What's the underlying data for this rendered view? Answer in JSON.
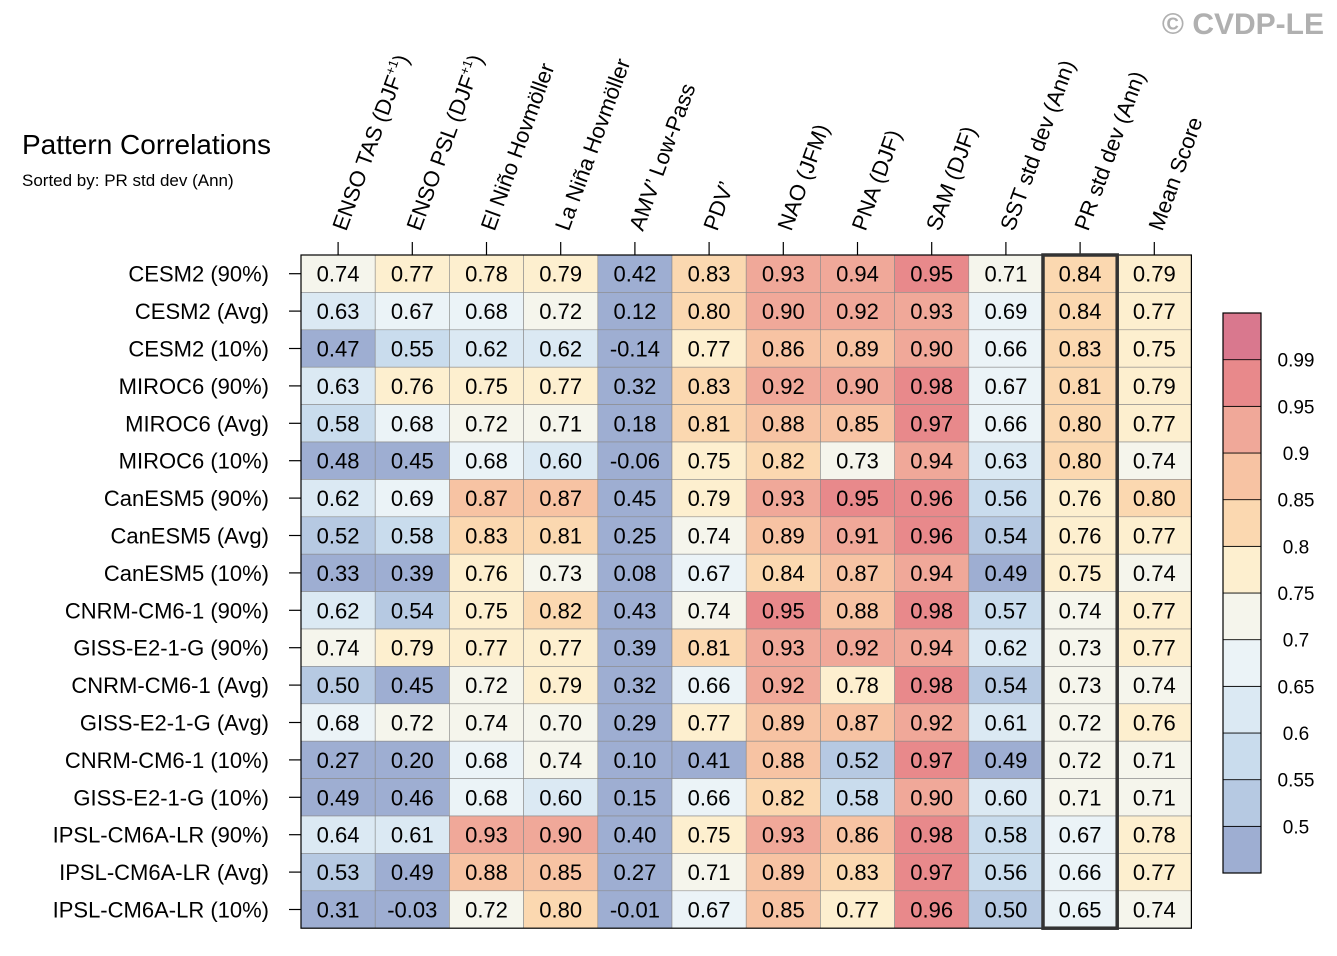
{
  "watermark": "© CVDP-LE",
  "chart_data": {
    "type": "heatmap",
    "title": "Pattern Correlations",
    "subtitle": "Sorted by: PR std dev (Ann)",
    "columns": [
      "ENSO TAS (DJF+1)",
      "ENSO PSL (DJF+1)",
      "El Niño Hovmöller",
      "La Niña Hovmöller",
      "AMV’ Low-Pass",
      "PDV’",
      "NAO (JFM)",
      "PNA (DJF)",
      "SAM (DJF)",
      "SST std dev (Ann)",
      "PR std dev (Ann)",
      "Mean Score"
    ],
    "column_labels": [
      {
        "main": "ENSO TAS (DJF",
        "sup": "+1",
        "end": ")"
      },
      {
        "main": "ENSO PSL (DJF",
        "sup": "+1",
        "end": ")"
      },
      {
        "main": "El Niño Hovmöller"
      },
      {
        "main": "La Niña Hovmöller"
      },
      {
        "main": "AMV’ Low-Pass"
      },
      {
        "main": "PDV’"
      },
      {
        "main": "NAO (JFM)"
      },
      {
        "main": "PNA (DJF)"
      },
      {
        "main": "SAM (DJF)"
      },
      {
        "main": "SST std dev (Ann)"
      },
      {
        "main": "PR std dev (Ann)"
      },
      {
        "main": "Mean Score"
      }
    ],
    "highlighted_column": "PR std dev (Ann)",
    "rows": [
      "CESM2 (90%)",
      "CESM2 (Avg)",
      "CESM2 (10%)",
      "MIROC6 (90%)",
      "MIROC6 (Avg)",
      "MIROC6 (10%)",
      "CanESM5 (90%)",
      "CanESM5 (Avg)",
      "CanESM5 (10%)",
      "CNRM-CM6-1 (90%)",
      "GISS-E2-1-G (90%)",
      "CNRM-CM6-1 (Avg)",
      "GISS-E2-1-G (Avg)",
      "CNRM-CM6-1 (10%)",
      "GISS-E2-1-G (10%)",
      "IPSL-CM6A-LR (90%)",
      "IPSL-CM6A-LR (Avg)",
      "IPSL-CM6A-LR (10%)"
    ],
    "values": [
      [
        0.74,
        0.77,
        0.78,
        0.79,
        0.42,
        0.83,
        0.93,
        0.94,
        0.95,
        0.71,
        0.84,
        0.79
      ],
      [
        0.63,
        0.67,
        0.68,
        0.72,
        0.12,
        0.8,
        0.9,
        0.92,
        0.93,
        0.69,
        0.84,
        0.77
      ],
      [
        0.47,
        0.55,
        0.62,
        0.62,
        -0.14,
        0.77,
        0.86,
        0.89,
        0.9,
        0.66,
        0.83,
        0.75
      ],
      [
        0.63,
        0.76,
        0.75,
        0.77,
        0.32,
        0.83,
        0.92,
        0.9,
        0.98,
        0.67,
        0.81,
        0.79
      ],
      [
        0.58,
        0.68,
        0.72,
        0.71,
        0.18,
        0.81,
        0.88,
        0.85,
        0.97,
        0.66,
        0.8,
        0.77
      ],
      [
        0.48,
        0.45,
        0.68,
        0.6,
        -0.06,
        0.75,
        0.82,
        0.73,
        0.94,
        0.63,
        0.8,
        0.74
      ],
      [
        0.62,
        0.69,
        0.87,
        0.87,
        0.45,
        0.79,
        0.93,
        0.95,
        0.96,
        0.56,
        0.76,
        0.8
      ],
      [
        0.52,
        0.58,
        0.83,
        0.81,
        0.25,
        0.74,
        0.89,
        0.91,
        0.96,
        0.54,
        0.76,
        0.77
      ],
      [
        0.33,
        0.39,
        0.76,
        0.73,
        0.08,
        0.67,
        0.84,
        0.87,
        0.94,
        0.49,
        0.75,
        0.74
      ],
      [
        0.62,
        0.54,
        0.75,
        0.82,
        0.43,
        0.74,
        0.95,
        0.88,
        0.98,
        0.57,
        0.74,
        0.77
      ],
      [
        0.74,
        0.79,
        0.77,
        0.77,
        0.39,
        0.81,
        0.93,
        0.92,
        0.94,
        0.62,
        0.73,
        0.77
      ],
      [
        0.5,
        0.45,
        0.72,
        0.79,
        0.32,
        0.66,
        0.92,
        0.78,
        0.98,
        0.54,
        0.73,
        0.74
      ],
      [
        0.68,
        0.72,
        0.74,
        0.7,
        0.29,
        0.77,
        0.89,
        0.87,
        0.92,
        0.61,
        0.72,
        0.76
      ],
      [
        0.27,
        0.2,
        0.68,
        0.74,
        0.1,
        0.41,
        0.88,
        0.52,
        0.97,
        0.49,
        0.72,
        0.71
      ],
      [
        0.49,
        0.46,
        0.68,
        0.6,
        0.15,
        0.66,
        0.82,
        0.58,
        0.9,
        0.6,
        0.71,
        0.71
      ],
      [
        0.64,
        0.61,
        0.93,
        0.9,
        0.4,
        0.75,
        0.93,
        0.86,
        0.98,
        0.58,
        0.67,
        0.78
      ],
      [
        0.53,
        0.49,
        0.88,
        0.85,
        0.27,
        0.71,
        0.89,
        0.83,
        0.97,
        0.56,
        0.66,
        0.77
      ],
      [
        0.31,
        -0.03,
        0.72,
        0.8,
        -0.01,
        0.67,
        0.85,
        0.77,
        0.96,
        0.5,
        0.65,
        0.74
      ]
    ],
    "colorbar": {
      "boundaries": [
        0.5,
        0.55,
        0.6,
        0.65,
        0.7,
        0.75,
        0.8,
        0.85,
        0.9,
        0.95,
        0.99
      ],
      "tick_labels": [
        "0.5",
        "0.55",
        "0.6",
        "0.65",
        "0.7",
        "0.75",
        "0.8",
        "0.85",
        "0.9",
        "0.95",
        "0.99"
      ],
      "colors": [
        "#9eaed2",
        "#b6c9e2",
        "#c9dced",
        "#dbe9f3",
        "#ebf3f7",
        "#f5f5ec",
        "#fdefcf",
        "#fbd8b0",
        "#f7c3a3",
        "#f0a899",
        "#e8898b",
        "#d9788e"
      ]
    }
  }
}
